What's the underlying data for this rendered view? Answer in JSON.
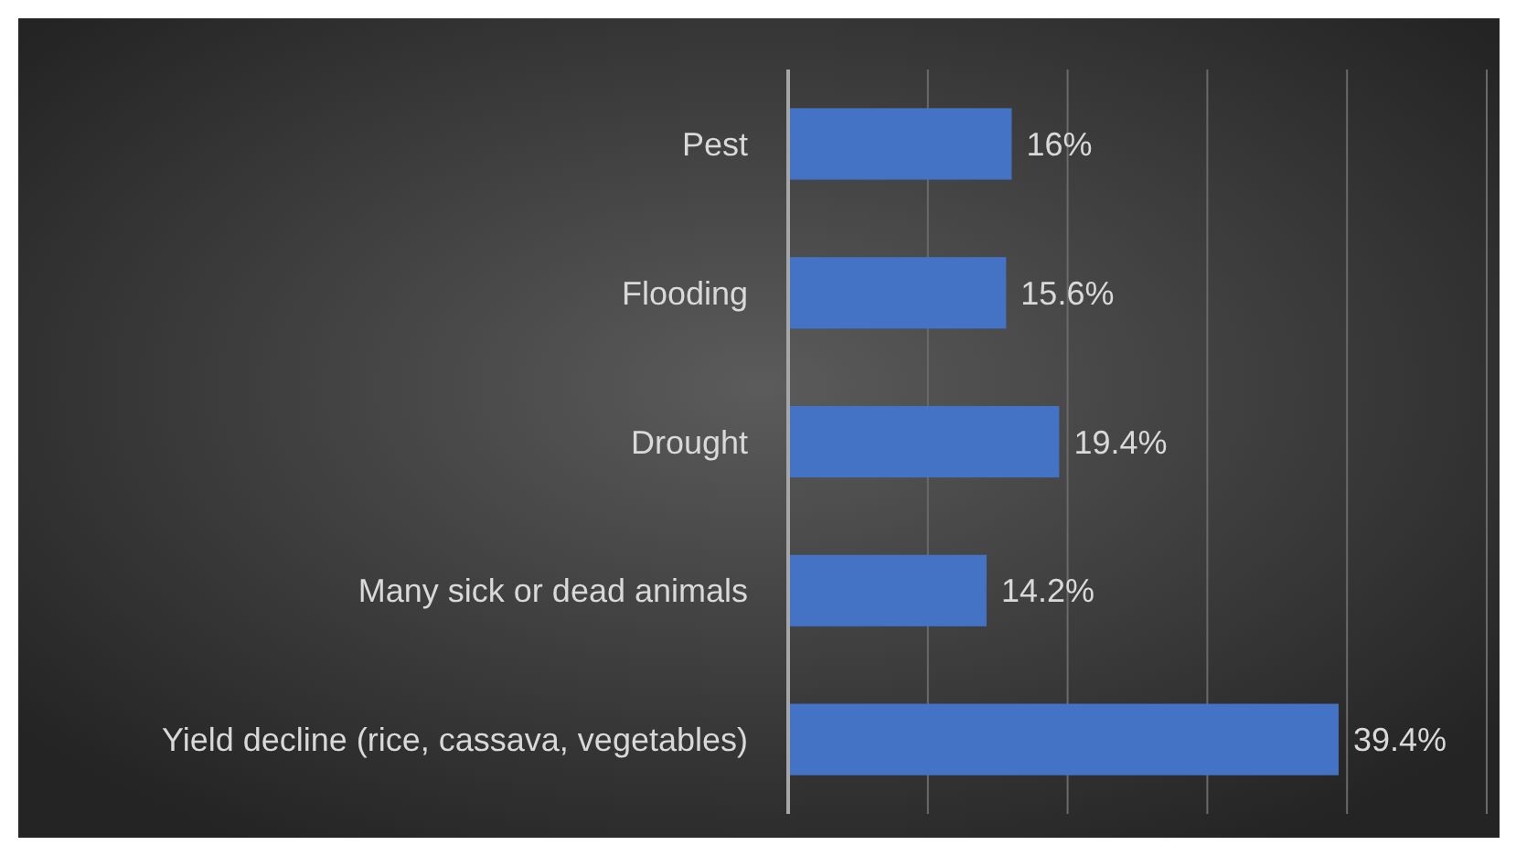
{
  "chart_data": {
    "type": "bar",
    "orientation": "horizontal",
    "categories": [
      "Pest",
      "Flooding",
      "Drought",
      "Many sick or dead animals",
      "Yield decline (rice, cassava, vegetables)"
    ],
    "values": [
      16,
      15.6,
      19.4,
      14.2,
      39.4
    ],
    "value_labels": [
      "16%",
      "15.6%",
      "19.4%",
      "14.2%",
      "39.4%"
    ],
    "color": "#4472c4",
    "xlim": [
      0,
      50
    ],
    "xticks": [
      {
        "value": 0,
        "label": null
      },
      {
        "value": 10,
        "label": null
      },
      {
        "value": 20,
        "label": null
      },
      {
        "value": 30,
        "label": null
      },
      {
        "value": 40,
        "label": null
      },
      {
        "value": 50,
        "label": null
      }
    ],
    "tick_labels": "y",
    "grid": "x"
  }
}
